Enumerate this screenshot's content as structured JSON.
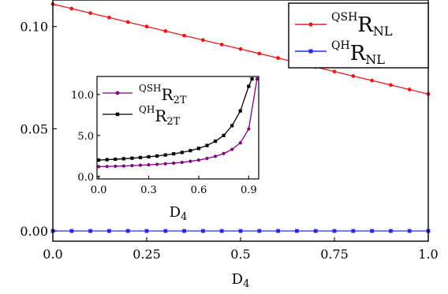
{
  "chart_data": [
    {
      "type": "line",
      "name": "main",
      "xlabel": "D",
      "xlabel_sub": "4",
      "xlim": [
        0,
        1.0
      ],
      "ylim": [
        -0.005,
        0.113
      ],
      "xticks": [
        0.0,
        0.25,
        0.5,
        0.75,
        1.0
      ],
      "xtick_labels": [
        "0.0",
        "0.25",
        "0.5",
        "0.75",
        "1.0"
      ],
      "yticks": [
        0.0,
        0.05,
        0.1
      ],
      "ytick_labels": [
        "0.00",
        "0.05",
        "0.10"
      ],
      "legend_position": "top-right",
      "series": [
        {
          "legend_sup": "QSH",
          "legend_main": "R",
          "legend_sub": "NL",
          "color": "#e8191c",
          "marker": "circle",
          "x": [
            0.0,
            0.05,
            0.1,
            0.15,
            0.2,
            0.25,
            0.3,
            0.35,
            0.4,
            0.45,
            0.5,
            0.55,
            0.6,
            0.65,
            0.7,
            0.75,
            0.8,
            0.85,
            0.9,
            0.95,
            1.0
          ],
          "y": [
            0.111,
            0.1088,
            0.1066,
            0.1044,
            0.1022,
            0.1,
            0.0978,
            0.0956,
            0.0934,
            0.0912,
            0.089,
            0.0868,
            0.0846,
            0.0824,
            0.0802,
            0.078,
            0.0758,
            0.0736,
            0.0714,
            0.0692,
            0.067
          ]
        },
        {
          "legend_sup": "QH",
          "legend_main": "R",
          "legend_sub": "NL",
          "color": "#2a2adc",
          "marker": "square",
          "x": [
            0.0,
            0.05,
            0.1,
            0.15,
            0.2,
            0.25,
            0.3,
            0.35,
            0.4,
            0.45,
            0.5,
            0.55,
            0.6,
            0.65,
            0.7,
            0.75,
            0.8,
            0.85,
            0.9,
            0.95,
            1.0
          ],
          "y": [
            0,
            0,
            0,
            0,
            0,
            0,
            0,
            0,
            0,
            0,
            0,
            0,
            0,
            0,
            0,
            0,
            0,
            0,
            0,
            0,
            0
          ]
        }
      ]
    },
    {
      "type": "line",
      "name": "inset",
      "xlabel": "D",
      "xlabel_sub": "4",
      "xlim": [
        -0.01,
        0.96
      ],
      "ylim": [
        -0.3,
        12.2
      ],
      "xticks": [
        0.0,
        0.3,
        0.6,
        0.9
      ],
      "xtick_labels": [
        "0.0",
        "0.3",
        "0.6",
        "0.9"
      ],
      "yticks": [
        0.0,
        5.0,
        10.0
      ],
      "ytick_labels": [
        "0.0",
        "5.0",
        "10.0"
      ],
      "legend_position": "top-left",
      "series": [
        {
          "legend_sup": "QSH",
          "legend_main": "R",
          "legend_sub": "2T",
          "color": "#800080",
          "marker": "circle",
          "x": [
            0.0,
            0.05,
            0.1,
            0.15,
            0.2,
            0.25,
            0.3,
            0.35,
            0.4,
            0.45,
            0.5,
            0.55,
            0.6,
            0.65,
            0.7,
            0.75,
            0.8,
            0.85,
            0.9,
            0.95
          ],
          "y": [
            1.2,
            1.22,
            1.25,
            1.28,
            1.32,
            1.37,
            1.42,
            1.48,
            1.55,
            1.62,
            1.72,
            1.85,
            2.0,
            2.2,
            2.45,
            2.8,
            3.3,
            4.1,
            5.8,
            11.9
          ]
        },
        {
          "legend_sup": "QH",
          "legend_main": "R",
          "legend_sub": "2T",
          "color": "#000000",
          "marker": "square",
          "x": [
            0.0,
            0.05,
            0.1,
            0.15,
            0.2,
            0.25,
            0.3,
            0.35,
            0.4,
            0.45,
            0.5,
            0.55,
            0.6,
            0.65,
            0.7,
            0.75,
            0.8,
            0.85,
            0.9,
            0.92
          ],
          "y": [
            2.0,
            2.05,
            2.1,
            2.16,
            2.23,
            2.31,
            2.4,
            2.5,
            2.62,
            2.76,
            2.93,
            3.15,
            3.42,
            3.78,
            4.3,
            5.0,
            6.2,
            8.0,
            11.0,
            11.9
          ]
        }
      ]
    }
  ]
}
